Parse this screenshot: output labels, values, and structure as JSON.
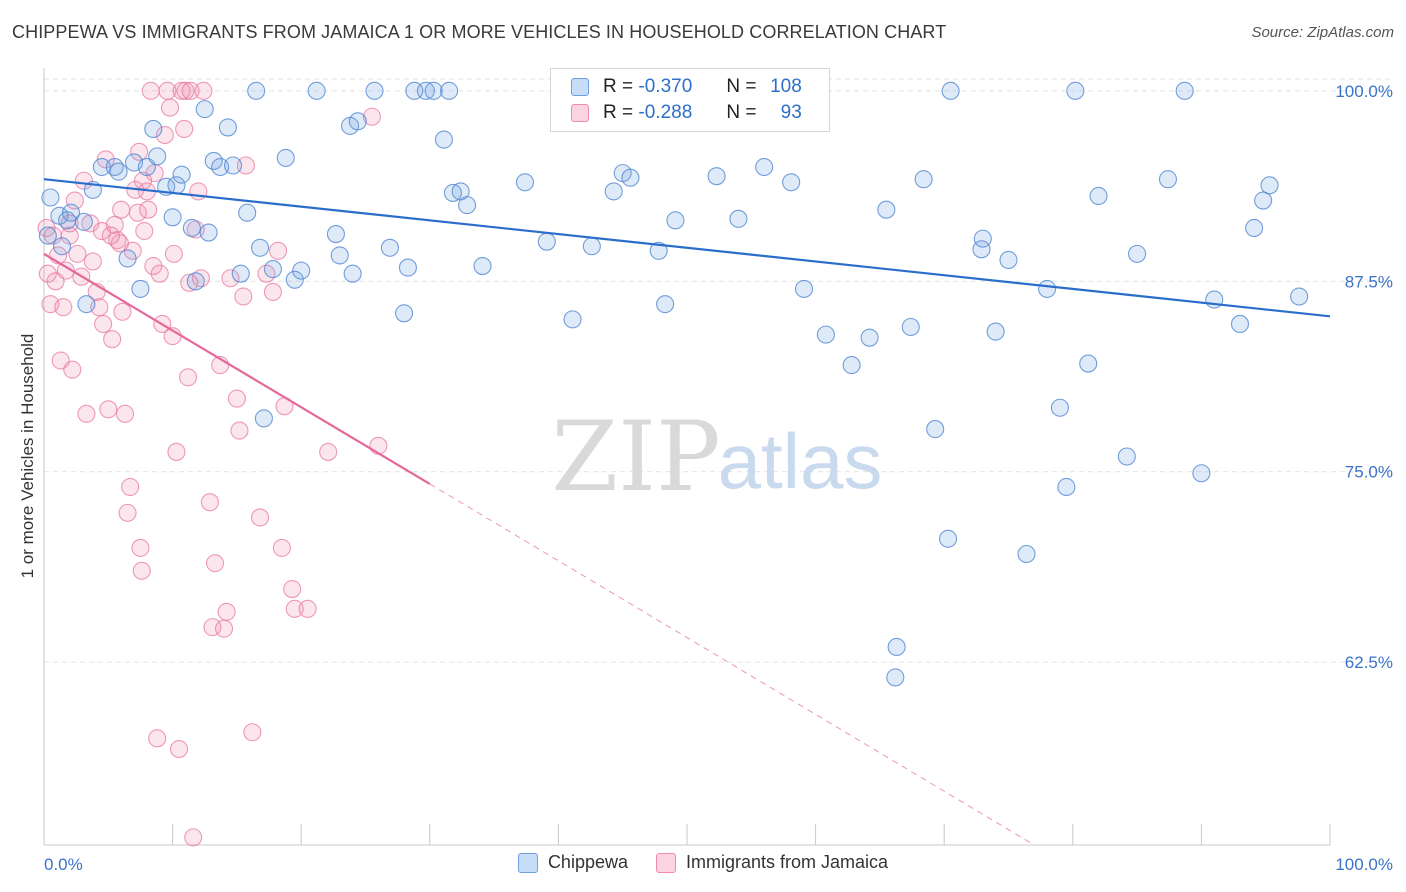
{
  "title": "CHIPPEWA VS IMMIGRANTS FROM JAMAICA 1 OR MORE VEHICLES IN HOUSEHOLD CORRELATION CHART",
  "source": "Source: ZipAtlas.com",
  "watermark": {
    "zip": "ZIP",
    "atlas": "atlas"
  },
  "legend": [
    {
      "r_label": "R =",
      "r_value": "-0.370",
      "n_label": "N =",
      "n_value": "108",
      "color": "#6fa0e0"
    },
    {
      "r_label": "R =",
      "r_value": "-0.288",
      "n_label": "N =",
      "n_value": "93",
      "color": "#f08bb0"
    }
  ],
  "colors": {
    "chippewa": "#6fa0e0",
    "chippewa_line": "#2a6dcb",
    "jamaica": "#f08bb0",
    "jamaica_line": "#e4699a",
    "axis_text": "#3a74c9"
  },
  "chart_data": {
    "type": "scatter",
    "title": "CHIPPEWA VS IMMIGRANTS FROM JAMAICA 1 OR MORE VEHICLES IN HOUSEHOLD CORRELATION CHART",
    "xlabel": "",
    "ylabel": "1 or more Vehicles in Household",
    "xlim": [
      0,
      100
    ],
    "ylim": [
      50.5,
      101.5
    ],
    "x_tick_labels": [
      "0.0%",
      "100.0%"
    ],
    "y_ticks": [
      62.5,
      75.0,
      87.5,
      100.0
    ],
    "y_tick_labels": [
      "62.5%",
      "75.0%",
      "87.5%",
      "100.0%"
    ],
    "grid": true,
    "legend_position": "top-center",
    "series": [
      {
        "name": "Chippewa",
        "r": -0.37,
        "n": 108,
        "trend": {
          "x": [
            0,
            100
          ],
          "y": [
            94.2,
            85.2
          ]
        },
        "points": [
          [
            0.3,
            90.5
          ],
          [
            0.5,
            93.0
          ],
          [
            1.2,
            91.8
          ],
          [
            1.4,
            89.8
          ],
          [
            1.8,
            91.5
          ],
          [
            2.1,
            92.0
          ],
          [
            3.1,
            91.4
          ],
          [
            3.3,
            86.0
          ],
          [
            3.8,
            93.5
          ],
          [
            4.5,
            95.0
          ],
          [
            5.5,
            95.0
          ],
          [
            5.8,
            94.7
          ],
          [
            6.5,
            89.0
          ],
          [
            7.0,
            95.3
          ],
          [
            7.5,
            87.0
          ],
          [
            8.0,
            95.0
          ],
          [
            8.5,
            97.5
          ],
          [
            8.8,
            95.7
          ],
          [
            9.5,
            93.7
          ],
          [
            10.0,
            91.7
          ],
          [
            10.3,
            93.8
          ],
          [
            10.7,
            94.5
          ],
          [
            11.5,
            91.0
          ],
          [
            11.8,
            87.5
          ],
          [
            12.5,
            98.8
          ],
          [
            12.8,
            90.7
          ],
          [
            13.2,
            95.4
          ],
          [
            13.7,
            95.0
          ],
          [
            14.3,
            97.6
          ],
          [
            14.7,
            95.1
          ],
          [
            15.3,
            88.0
          ],
          [
            15.8,
            92.0
          ],
          [
            16.5,
            100.0
          ],
          [
            16.8,
            89.7
          ],
          [
            17.1,
            78.5
          ],
          [
            17.8,
            88.3
          ],
          [
            18.8,
            95.6
          ],
          [
            19.5,
            87.6
          ],
          [
            20.0,
            88.2
          ],
          [
            21.2,
            100.0
          ],
          [
            22.7,
            90.6
          ],
          [
            23.0,
            89.2
          ],
          [
            23.8,
            97.7
          ],
          [
            24.0,
            88.0
          ],
          [
            24.4,
            98.0
          ],
          [
            25.7,
            100.0
          ],
          [
            26.9,
            89.7
          ],
          [
            28.0,
            85.4
          ],
          [
            28.3,
            88.4
          ],
          [
            28.8,
            100.0
          ],
          [
            29.7,
            100.0
          ],
          [
            30.3,
            100.0
          ],
          [
            31.1,
            96.8
          ],
          [
            31.5,
            100.0
          ],
          [
            31.8,
            93.3
          ],
          [
            32.4,
            93.4
          ],
          [
            32.9,
            92.5
          ],
          [
            34.1,
            88.5
          ],
          [
            37.4,
            94.0
          ],
          [
            39.1,
            90.1
          ],
          [
            41.1,
            85.0
          ],
          [
            42.6,
            89.8
          ],
          [
            44.3,
            93.4
          ],
          [
            45.0,
            94.6
          ],
          [
            45.6,
            94.3
          ],
          [
            47.8,
            89.5
          ],
          [
            48.3,
            86.0
          ],
          [
            49.1,
            91.5
          ],
          [
            50.3,
            100.0
          ],
          [
            52.3,
            94.4
          ],
          [
            54.0,
            91.6
          ],
          [
            55.2,
            100.0
          ],
          [
            56.0,
            95.0
          ],
          [
            58.1,
            94.0
          ],
          [
            59.1,
            87.0
          ],
          [
            60.8,
            84.0
          ],
          [
            62.8,
            82.0
          ],
          [
            64.2,
            83.8
          ],
          [
            65.5,
            92.2
          ],
          [
            66.3,
            63.5
          ],
          [
            66.2,
            61.5
          ],
          [
            67.4,
            84.5
          ],
          [
            68.4,
            94.2
          ],
          [
            69.3,
            77.8
          ],
          [
            70.3,
            70.6
          ],
          [
            72.9,
            89.6
          ],
          [
            73.0,
            90.3
          ],
          [
            74.0,
            84.2
          ],
          [
            75.0,
            88.9
          ],
          [
            76.4,
            69.6
          ],
          [
            78.0,
            87.0
          ],
          [
            79.0,
            79.2
          ],
          [
            79.5,
            74.0
          ],
          [
            80.2,
            100.0
          ],
          [
            81.2,
            82.1
          ],
          [
            82.0,
            93.1
          ],
          [
            84.2,
            76.0
          ],
          [
            85.0,
            89.3
          ],
          [
            87.4,
            94.2
          ],
          [
            88.7,
            100.0
          ],
          [
            90.0,
            74.9
          ],
          [
            91.0,
            86.3
          ],
          [
            93.0,
            84.7
          ],
          [
            94.1,
            91.0
          ],
          [
            94.8,
            92.8
          ],
          [
            95.3,
            93.8
          ],
          [
            97.6,
            86.5
          ],
          [
            70.5,
            100.0
          ]
        ]
      },
      {
        "name": "Immigrants from Jamaica",
        "r": -0.288,
        "n": 93,
        "trend": {
          "x": [
            0,
            30
          ],
          "y": [
            89.3,
            74.2
          ]
        },
        "trend_extension": {
          "x": [
            30,
            77
          ],
          "y": [
            74.2,
            50.5
          ]
        },
        "points": [
          [
            0.2,
            91.0
          ],
          [
            0.3,
            88.0
          ],
          [
            0.5,
            86.0
          ],
          [
            0.7,
            90.5
          ],
          [
            0.9,
            87.5
          ],
          [
            1.1,
            89.2
          ],
          [
            1.3,
            82.3
          ],
          [
            1.5,
            85.8
          ],
          [
            1.7,
            88.2
          ],
          [
            2.0,
            90.5
          ],
          [
            2.2,
            81.7
          ],
          [
            2.4,
            92.8
          ],
          [
            2.6,
            89.3
          ],
          [
            2.9,
            87.8
          ],
          [
            3.1,
            94.1
          ],
          [
            3.3,
            78.8
          ],
          [
            3.6,
            91.3
          ],
          [
            3.8,
            88.8
          ],
          [
            4.1,
            86.8
          ],
          [
            4.3,
            85.8
          ],
          [
            4.5,
            90.8
          ],
          [
            4.6,
            84.7
          ],
          [
            4.8,
            95.5
          ],
          [
            5.0,
            79.1
          ],
          [
            5.3,
            83.7
          ],
          [
            5.5,
            91.2
          ],
          [
            5.7,
            90.2
          ],
          [
            5.9,
            90.0
          ],
          [
            6.1,
            85.5
          ],
          [
            6.3,
            78.8
          ],
          [
            6.5,
            72.3
          ],
          [
            6.7,
            74.0
          ],
          [
            6.9,
            89.5
          ],
          [
            7.1,
            93.5
          ],
          [
            7.3,
            92.0
          ],
          [
            7.4,
            96.0
          ],
          [
            7.5,
            70.0
          ],
          [
            7.6,
            68.5
          ],
          [
            7.8,
            90.8
          ],
          [
            8.0,
            93.4
          ],
          [
            8.1,
            92.2
          ],
          [
            8.3,
            100.0
          ],
          [
            8.5,
            88.5
          ],
          [
            8.6,
            94.6
          ],
          [
            8.8,
            57.5
          ],
          [
            9.0,
            88.0
          ],
          [
            9.2,
            84.7
          ],
          [
            9.4,
            97.1
          ],
          [
            9.6,
            100.0
          ],
          [
            9.8,
            98.9
          ],
          [
            10.0,
            83.9
          ],
          [
            10.1,
            89.3
          ],
          [
            10.3,
            76.3
          ],
          [
            10.5,
            56.8
          ],
          [
            10.7,
            100.0
          ],
          [
            10.9,
            97.5
          ],
          [
            11.0,
            100.0
          ],
          [
            11.2,
            81.2
          ],
          [
            11.4,
            100.0
          ],
          [
            11.6,
            51.0
          ],
          [
            11.8,
            90.9
          ],
          [
            12.0,
            93.4
          ],
          [
            12.2,
            87.7
          ],
          [
            12.4,
            100.0
          ],
          [
            12.9,
            73.0
          ],
          [
            13.1,
            64.8
          ],
          [
            13.3,
            69.0
          ],
          [
            13.7,
            82.0
          ],
          [
            14.0,
            64.7
          ],
          [
            14.2,
            65.8
          ],
          [
            14.5,
            87.7
          ],
          [
            15.0,
            79.8
          ],
          [
            15.2,
            77.7
          ],
          [
            15.5,
            86.5
          ],
          [
            15.7,
            95.1
          ],
          [
            16.2,
            57.9
          ],
          [
            16.8,
            72.0
          ],
          [
            17.3,
            88.0
          ],
          [
            17.8,
            86.8
          ],
          [
            18.2,
            89.5
          ],
          [
            18.5,
            70.0
          ],
          [
            18.7,
            79.3
          ],
          [
            19.3,
            67.3
          ],
          [
            19.5,
            66.0
          ],
          [
            20.5,
            66.0
          ],
          [
            22.1,
            76.3
          ],
          [
            25.5,
            98.3
          ],
          [
            26.0,
            76.7
          ],
          [
            11.3,
            87.4
          ],
          [
            5.2,
            90.5
          ],
          [
            6.0,
            92.2
          ],
          [
            7.7,
            94.1
          ],
          [
            2.0,
            91.3
          ]
        ]
      }
    ]
  }
}
